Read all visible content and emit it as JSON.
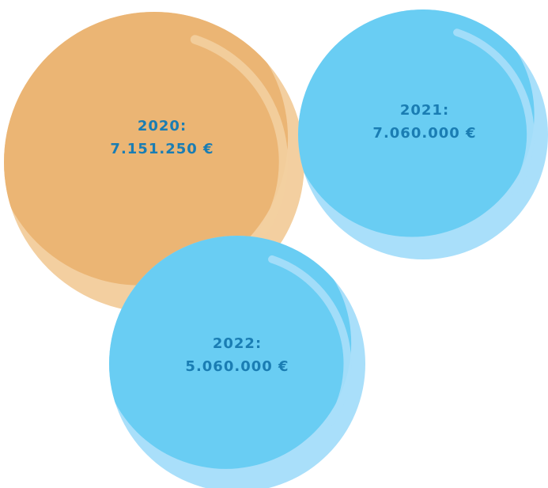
{
  "bubbles": [
    {
      "year": "2020:",
      "amount": "7.151.250 €"
    },
    {
      "year": "2021:",
      "amount": "7.060.000 €"
    },
    {
      "year": "2022:",
      "amount": "5.060.000 €"
    }
  ]
}
